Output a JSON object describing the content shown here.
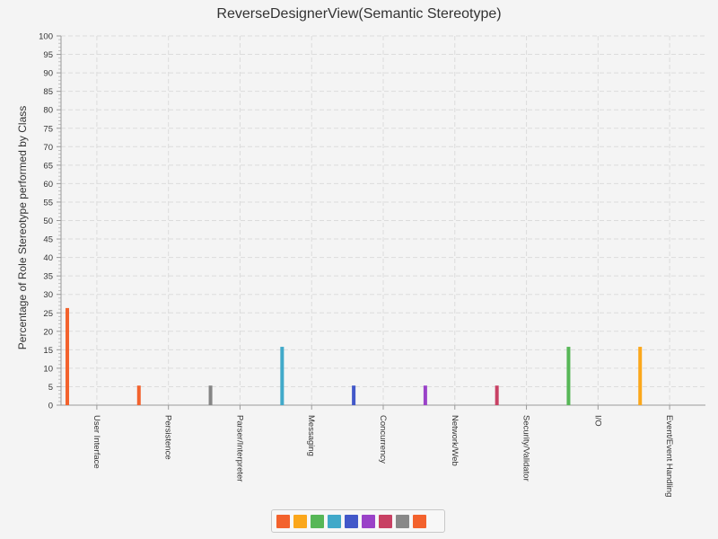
{
  "chart_data": {
    "type": "bar",
    "title": "ReverseDesignerView(Semantic Stereotype)",
    "ylabel": "Percentage of Role Stereotype performed by Class",
    "xlabel": "",
    "ylim": [
      0,
      100
    ],
    "y_ticks": [
      0,
      5,
      10,
      15,
      20,
      25,
      30,
      35,
      40,
      45,
      50,
      55,
      60,
      65,
      70,
      75,
      80,
      85,
      90,
      95,
      100
    ],
    "grid": true,
    "categories": [
      "User Interface",
      "Persistence",
      "Parser/Interpreter",
      "Messaging",
      "Concurrency",
      "Network/Web",
      "Security/Validator",
      "I/O",
      "Event/Event Handling"
    ],
    "values": [
      26.3,
      5.3,
      5.3,
      15.8,
      5.3,
      5.3,
      5.3,
      15.8,
      15.8
    ],
    "bar_colors": [
      "#f3622d",
      "#f3622d",
      "#858585",
      "#41a9c9",
      "#4258c9",
      "#9a42c8",
      "#c84164",
      "#57b757",
      "#fba71b"
    ],
    "legend_position": "bottom",
    "legend_colors": [
      "#f3622d",
      "#fba71b",
      "#57b757",
      "#41a9c9",
      "#4258c9",
      "#9a42c8",
      "#c84164",
      "#888888",
      "#f3622d"
    ]
  }
}
